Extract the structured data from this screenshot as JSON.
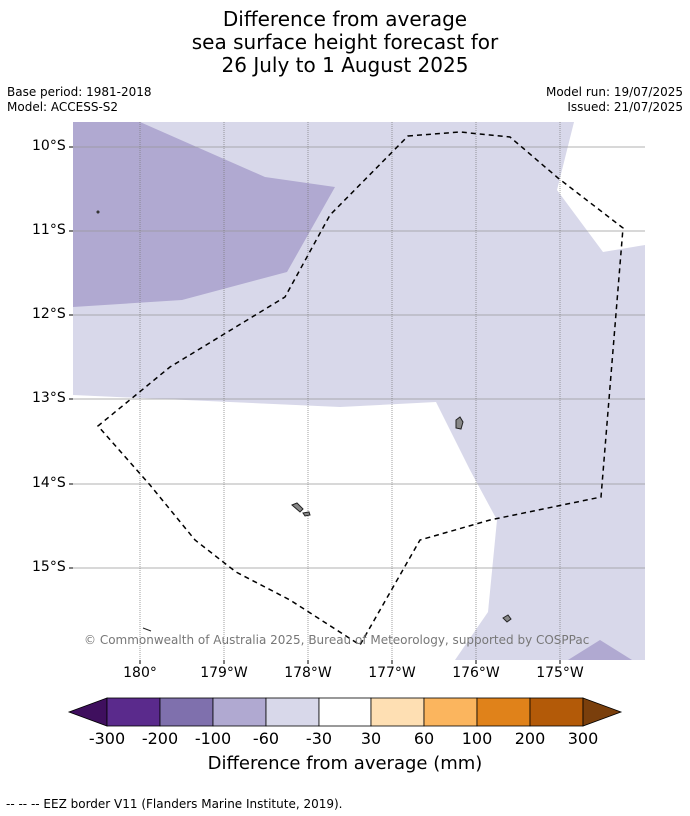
{
  "title": {
    "line1": "Difference from average",
    "line2": "sea surface height forecast for",
    "line3": "26 July to 1 August 2025"
  },
  "meta_left": {
    "base_period": "Base period: 1981-2018",
    "model": "Model: ACCESS-S2"
  },
  "meta_right": {
    "model_run": "Model run: 19/07/2025",
    "issued": "Issued: 21/07/2025"
  },
  "map": {
    "lat_labels": [
      "10°S",
      "11°S",
      "12°S",
      "13°S",
      "14°S",
      "15°S"
    ],
    "lon_labels": [
      "180°",
      "179°W",
      "178°W",
      "177°W",
      "176°W",
      "175°W"
    ],
    "copyright": "© Commonwealth of Australia 2025, Bureau of Meteorology, supported by COSPPac"
  },
  "colorbar": {
    "ticks": [
      "-300",
      "-200",
      "-100",
      "-60",
      "-30",
      "30",
      "60",
      "100",
      "200",
      "300"
    ],
    "title": "Difference from average (mm)",
    "colors": [
      "#3f0f5e",
      "#5a2a8c",
      "#7f70ad",
      "#b0a9d1",
      "#d8d8ea",
      "#ffffff",
      "#fedfb3",
      "#fbb55e",
      "#e0821a",
      "#b35a08",
      "#7a3f0c"
    ]
  },
  "footnote": "--  --  -- EEZ border V11 (Flanders Marine Institute, 2019)."
}
